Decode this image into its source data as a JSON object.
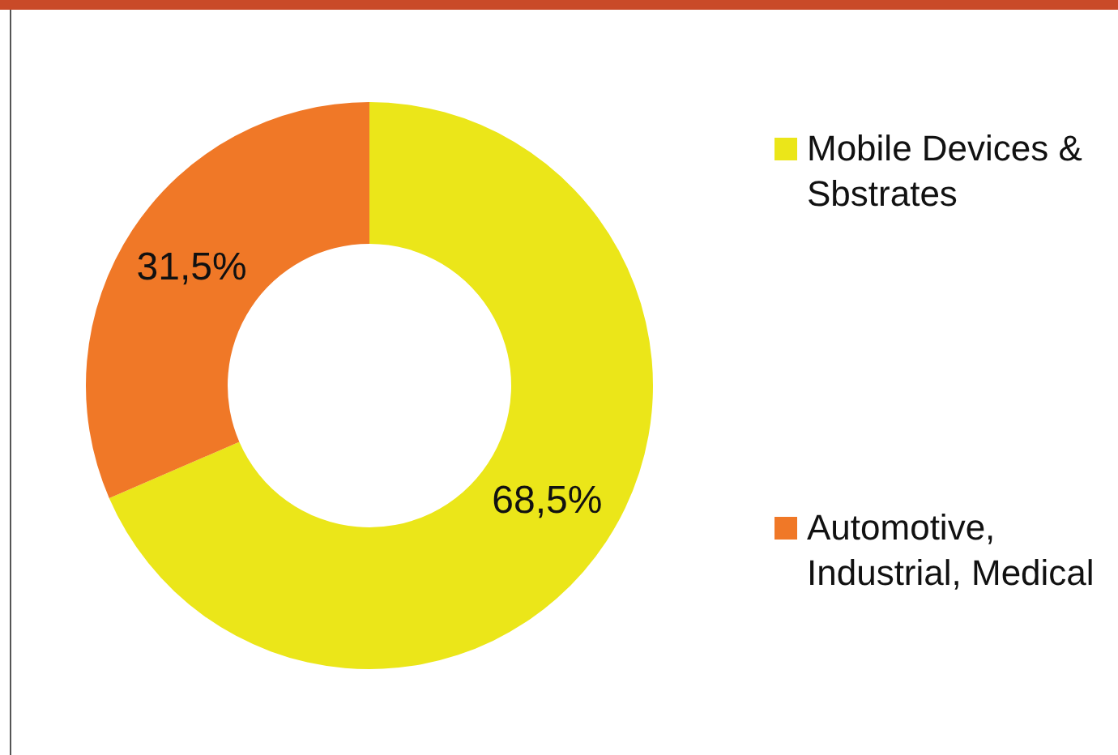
{
  "chart_data": {
    "type": "donut",
    "categories": [
      "Mobile Devices & Sbstrates",
      "Automotive, Industrial, Medical"
    ],
    "values": [
      68.5,
      31.5
    ],
    "colors": [
      "#ebe619",
      "#f07827"
    ],
    "value_labels": [
      "68,5%",
      "31,5%"
    ],
    "legend": "right"
  }
}
